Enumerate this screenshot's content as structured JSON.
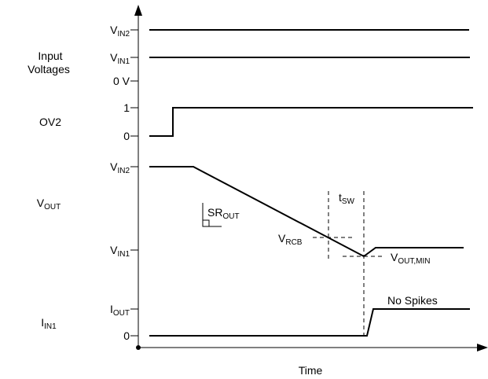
{
  "axis_labels": [
    {
      "base": "V",
      "sub": "IN2"
    },
    {
      "base": "V",
      "sub": "IN1"
    },
    {
      "base": "0 V"
    },
    {
      "base": "1"
    },
    {
      "base": "0"
    },
    {
      "base": "V",
      "sub": "IN2"
    },
    {
      "base": "V",
      "sub": "IN1"
    },
    {
      "base": "I",
      "sub": "OUT"
    },
    {
      "base": "0"
    }
  ],
  "group_labels": {
    "input_voltages": [
      "Input",
      "Voltages"
    ],
    "ov2": {
      "base": "OV2"
    },
    "vout": {
      "base": "V",
      "sub": "OUT"
    },
    "iin1": {
      "base": "I",
      "sub": "IN1"
    }
  },
  "annotations": {
    "sr_out": {
      "base": "SR",
      "sub": "OUT"
    },
    "t_sw": {
      "base": "t",
      "sub": "SW"
    },
    "v_rcb": {
      "base": "V",
      "sub": "RCB"
    },
    "v_out_min": {
      "base": "V",
      "sub": "OUT,MIN"
    },
    "no_spikes": "No Spikes"
  },
  "x_axis_label": "Time"
}
